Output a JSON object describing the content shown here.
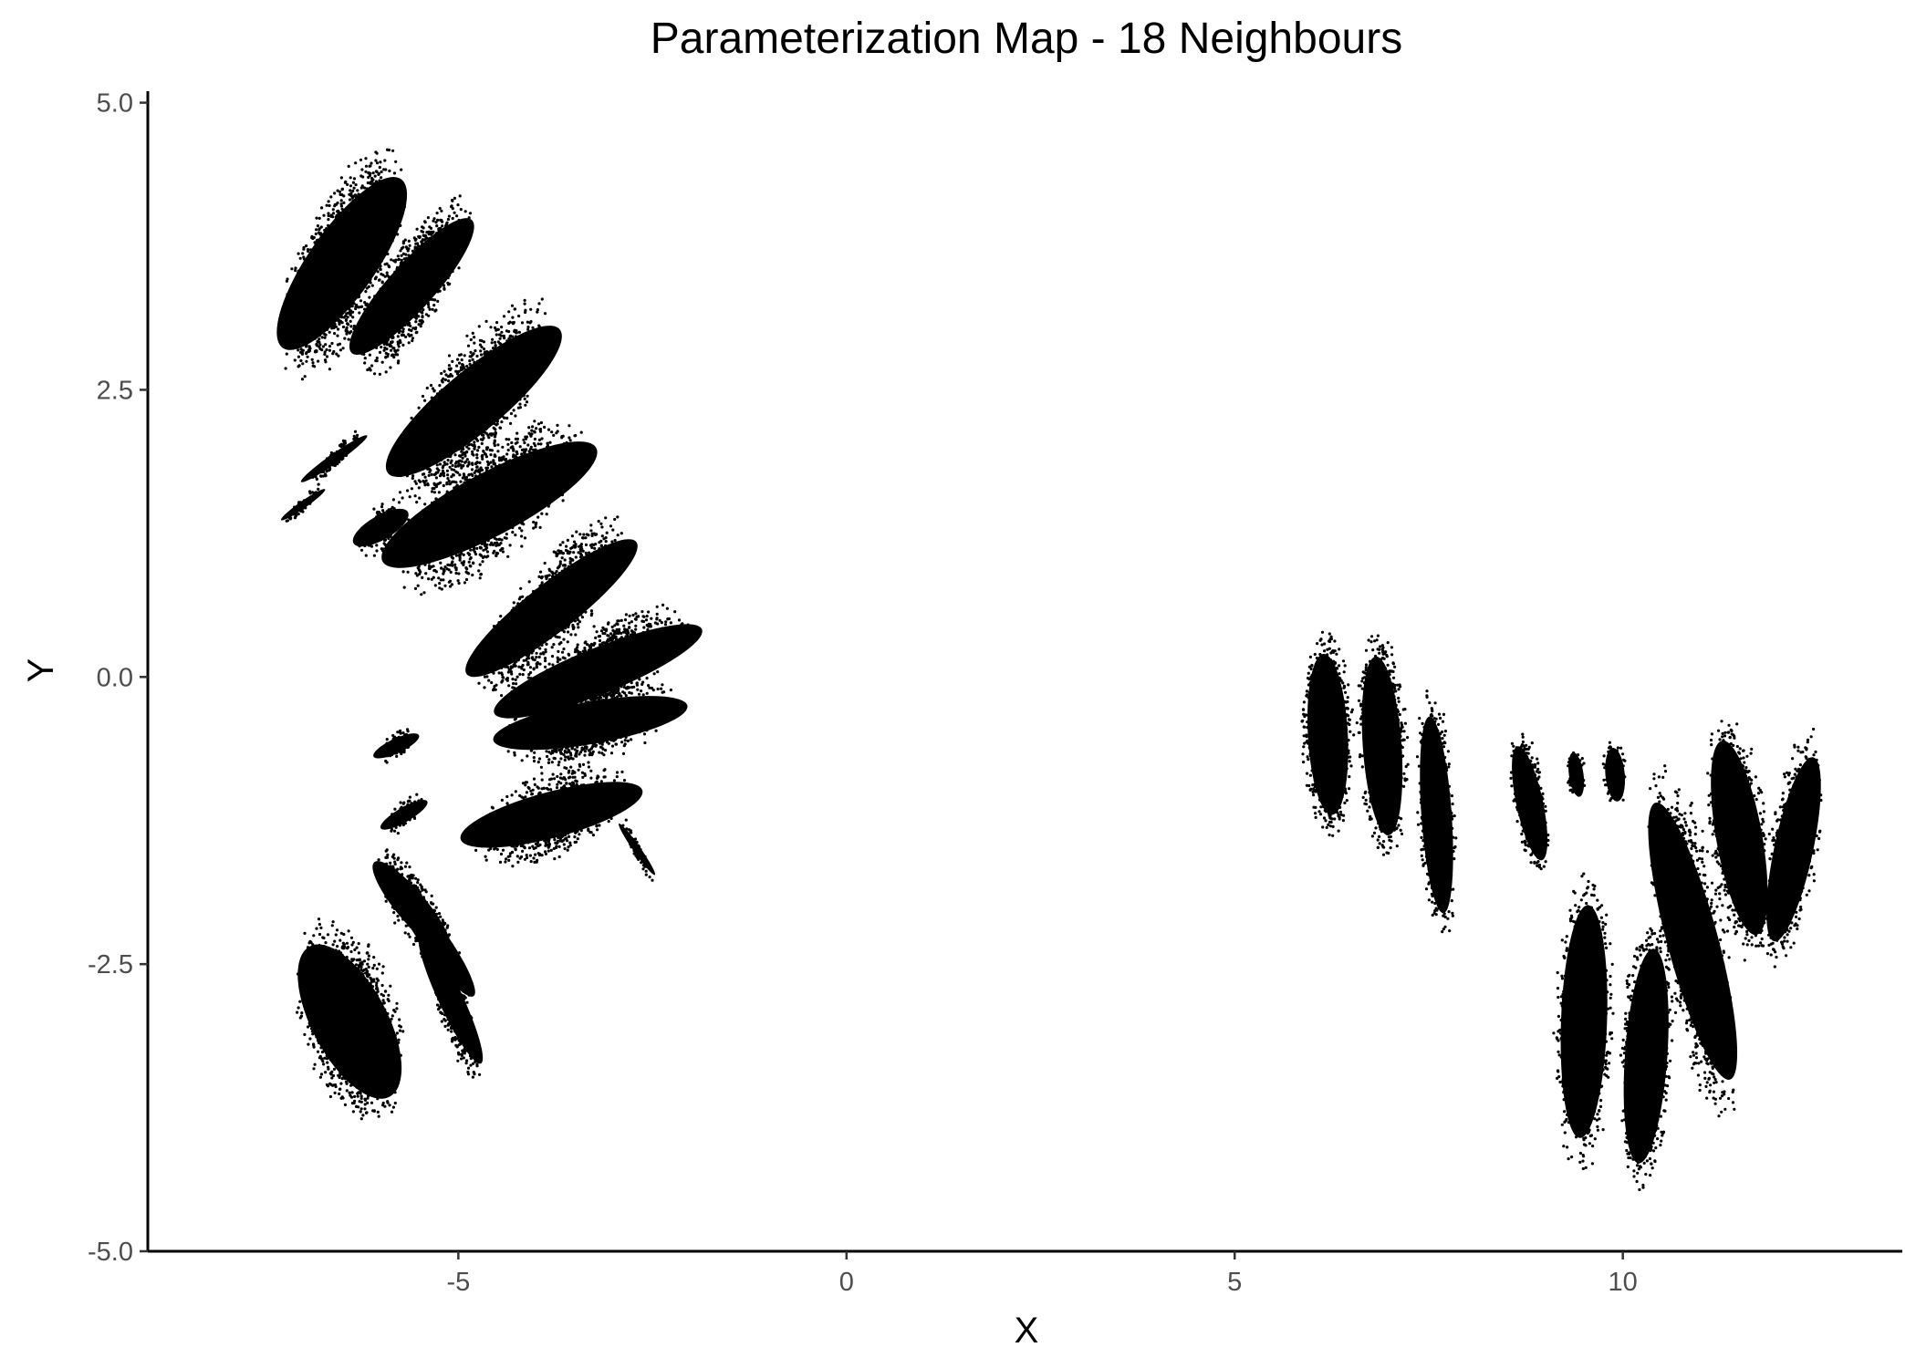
{
  "chart_data": {
    "type": "scatter",
    "title": "Parameterization Map - 18 Neighbours",
    "xlabel": "X",
    "ylabel": "Y",
    "xlim": [
      -9.0,
      13.6
    ],
    "ylim": [
      -5.0,
      5.1
    ],
    "x_ticks": [
      -5,
      0,
      5,
      10
    ],
    "x_tick_labels": [
      "-5",
      "0",
      "5",
      "10"
    ],
    "y_ticks": [
      -5.0,
      -2.5,
      0.0,
      2.5,
      5.0
    ],
    "y_tick_labels": [
      "-5.0",
      "-2.5",
      "0.0",
      "2.5",
      "5.0"
    ],
    "grid": false,
    "legend": "none",
    "point_color": "#000000",
    "clusters": [
      {
        "cx": -6.5,
        "cy": 3.6,
        "rx": 0.55,
        "ry": 1.15,
        "angle": -35,
        "n": 1400
      },
      {
        "cx": -5.6,
        "cy": 3.4,
        "rx": 0.38,
        "ry": 1.0,
        "angle": -42,
        "n": 900
      },
      {
        "cx": -4.8,
        "cy": 2.4,
        "rx": 0.5,
        "ry": 1.25,
        "angle": -50,
        "n": 1200
      },
      {
        "cx": -4.6,
        "cy": 1.5,
        "rx": 0.52,
        "ry": 1.35,
        "angle": -62,
        "n": 1300
      },
      {
        "cx": -3.8,
        "cy": 0.6,
        "rx": 0.4,
        "ry": 1.2,
        "angle": -52,
        "n": 1000
      },
      {
        "cx": -3.2,
        "cy": 0.05,
        "rx": 0.38,
        "ry": 1.25,
        "angle": -68,
        "n": 1000
      },
      {
        "cx": -3.3,
        "cy": -0.4,
        "rx": 0.35,
        "ry": 1.1,
        "angle": -80,
        "n": 900
      },
      {
        "cx": -3.8,
        "cy": -1.2,
        "rx": 0.38,
        "ry": 1.05,
        "angle": -75,
        "n": 800
      },
      {
        "cx": -2.7,
        "cy": -1.5,
        "rx": 0.06,
        "ry": 0.35,
        "angle": 35,
        "n": 60
      },
      {
        "cx": -5.8,
        "cy": -0.6,
        "rx": 0.12,
        "ry": 0.28,
        "angle": -65,
        "n": 90
      },
      {
        "cx": -5.7,
        "cy": -1.2,
        "rx": 0.12,
        "ry": 0.3,
        "angle": -60,
        "n": 80
      },
      {
        "cx": -6.4,
        "cy": -3.0,
        "rx": 0.62,
        "ry": 0.95,
        "angle": 28,
        "n": 1400
      },
      {
        "cx": -5.1,
        "cy": -2.8,
        "rx": 0.2,
        "ry": 0.8,
        "angle": 25,
        "n": 500
      },
      {
        "cx": -5.3,
        "cy": -2.3,
        "rx": 0.22,
        "ry": 0.75,
        "angle": 35,
        "n": 450
      },
      {
        "cx": -5.6,
        "cy": -2.0,
        "rx": 0.25,
        "ry": 0.65,
        "angle": 40,
        "n": 350
      },
      {
        "cx": -6.6,
        "cy": 1.9,
        "rx": 0.08,
        "ry": 0.45,
        "angle": -55,
        "n": 100
      },
      {
        "cx": -7.0,
        "cy": 1.5,
        "rx": 0.06,
        "ry": 0.3,
        "angle": -55,
        "n": 60
      },
      {
        "cx": -6.0,
        "cy": 1.3,
        "rx": 0.2,
        "ry": 0.35,
        "angle": -60,
        "n": 120
      },
      {
        "cx": 6.2,
        "cy": -0.5,
        "rx": 0.33,
        "ry": 0.9,
        "angle": 3,
        "n": 1000
      },
      {
        "cx": 6.9,
        "cy": -0.6,
        "rx": 0.32,
        "ry": 1.0,
        "angle": 4,
        "n": 900
      },
      {
        "cx": 7.6,
        "cy": -1.2,
        "rx": 0.25,
        "ry": 1.1,
        "angle": 4,
        "n": 700
      },
      {
        "cx": 8.8,
        "cy": -1.1,
        "rx": 0.22,
        "ry": 0.65,
        "angle": 12,
        "n": 450
      },
      {
        "cx": 9.4,
        "cy": -0.85,
        "rx": 0.12,
        "ry": 0.25,
        "angle": 8,
        "n": 90
      },
      {
        "cx": 9.9,
        "cy": -0.85,
        "rx": 0.16,
        "ry": 0.3,
        "angle": 5,
        "n": 110
      },
      {
        "cx": 9.5,
        "cy": -3.0,
        "rx": 0.38,
        "ry": 1.3,
        "angle": -2,
        "n": 1000
      },
      {
        "cx": 10.3,
        "cy": -3.3,
        "rx": 0.35,
        "ry": 1.2,
        "angle": -4,
        "n": 900
      },
      {
        "cx": 10.9,
        "cy": -2.3,
        "rx": 0.42,
        "ry": 1.6,
        "angle": 15,
        "n": 1100
      },
      {
        "cx": 11.5,
        "cy": -1.4,
        "rx": 0.38,
        "ry": 1.1,
        "angle": 10,
        "n": 850
      },
      {
        "cx": 12.2,
        "cy": -1.5,
        "rx": 0.32,
        "ry": 1.05,
        "angle": -12,
        "n": 750
      }
    ]
  }
}
